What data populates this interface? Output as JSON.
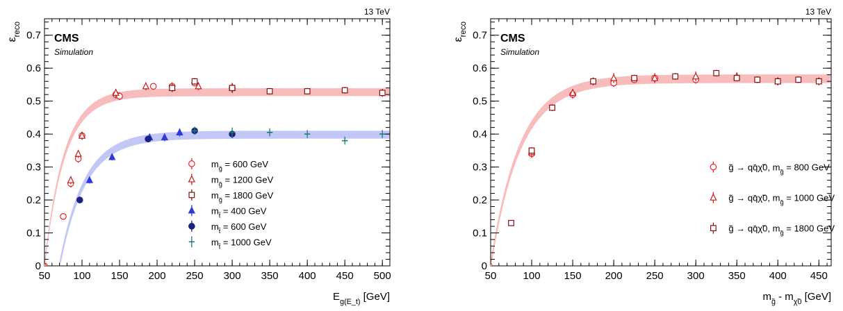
{
  "chart_data": [
    {
      "type": "scatter",
      "energy_label": "13 TeV",
      "experiment": "CMS",
      "experiment_sub": "Simulation",
      "xlabel": "E_g(E_t) [GeV]",
      "ylabel": "ε_reco",
      "xlim": [
        50,
        510
      ],
      "ylim": [
        0,
        0.75
      ],
      "x_ticks": [
        50,
        100,
        150,
        200,
        250,
        300,
        350,
        400,
        450,
        500
      ],
      "y_ticks": [
        0,
        0.1,
        0.2,
        0.3,
        0.4,
        0.5,
        0.6,
        0.7
      ],
      "grid": false,
      "legend_position": "center-right",
      "bands": [
        {
          "color": "#f4a6a6",
          "x_start": 50,
          "plateau": 0.527,
          "half_width": 0.012,
          "steepness": 0.038,
          "x_end": 510
        },
        {
          "color": "#aeb4f2",
          "x_start": 70,
          "plateau": 0.398,
          "half_width": 0.012,
          "steepness": 0.03,
          "x_end": 510
        }
      ],
      "series": [
        {
          "name": "m_g̃ = 600 GeV",
          "color": "#e8232b",
          "marker": "circle",
          "x": [
            50,
            75,
            85,
            95,
            100,
            145,
            150,
            195,
            220,
            250,
            300
          ],
          "y": [
            0.0,
            0.15,
            0.25,
            0.325,
            0.395,
            0.52,
            0.515,
            0.545,
            0.545,
            0.555,
            0.54
          ],
          "err": [
            0.01,
            0.01,
            0.012,
            0.012,
            0.012,
            0.012,
            0.012,
            0.01,
            0.012,
            0.01,
            0.012
          ]
        },
        {
          "name": "m_g̃ = 1200 GeV",
          "color": "#c41e1e",
          "marker": "triangle",
          "x": [
            50,
            85,
            95,
            100,
            145,
            185,
            220,
            255,
            300
          ],
          "y": [
            0.0,
            0.26,
            0.34,
            0.395,
            0.525,
            0.545,
            0.54,
            0.545,
            0.54
          ],
          "err": [
            0.01,
            0.012,
            0.012,
            0.012,
            0.012,
            0.012,
            0.012,
            0.012,
            0.012
          ]
        },
        {
          "name": "m_g̃ = 1800 GeV",
          "color": "#8b1010",
          "marker": "square",
          "x": [
            220,
            250,
            300,
            350,
            400,
            450,
            500
          ],
          "y": [
            0.54,
            0.56,
            0.54,
            0.53,
            0.53,
            0.533,
            0.525
          ],
          "err": [
            0.012,
            0.01,
            0.015,
            0.01,
            0.01,
            0.01,
            0.012
          ]
        },
        {
          "name": "m_t̃ = 400 GeV",
          "color": "#2f39d8",
          "marker": "triangle-filled",
          "x": [
            110,
            140,
            190,
            210,
            230
          ],
          "y": [
            0.26,
            0.33,
            0.39,
            0.39,
            0.405
          ],
          "err": [
            0.01,
            0.01,
            0.01,
            0.012,
            0.012
          ]
        },
        {
          "name": "m_t̃ = 600 GeV",
          "color": "#1a237e",
          "marker": "circle-filled",
          "x": [
            97,
            188,
            250,
            300
          ],
          "y": [
            0.2,
            0.385,
            0.41,
            0.4
          ],
          "err": [
            0.01,
            0.01,
            0.012,
            0.012
          ]
        },
        {
          "name": "m_t̃ = 1000 GeV",
          "color": "#1c7c7c",
          "marker": "cross",
          "x": [
            250,
            300,
            350,
            400,
            450,
            500
          ],
          "y": [
            0.41,
            0.405,
            0.405,
            0.4,
            0.38,
            0.4
          ],
          "err": [
            0.012,
            0.015,
            0.012,
            0.012,
            0.012,
            0.012
          ]
        }
      ]
    },
    {
      "type": "scatter",
      "energy_label": "13 TeV",
      "experiment": "CMS",
      "experiment_sub": "Simulation",
      "xlabel": "m_g̃ - m_χ̃0 [GeV]",
      "ylabel": "ε_reco",
      "xlim": [
        50,
        465
      ],
      "ylim": [
        0,
        0.75
      ],
      "x_ticks": [
        50,
        100,
        150,
        200,
        250,
        300,
        350,
        400,
        450
      ],
      "y_ticks": [
        0,
        0.1,
        0.2,
        0.3,
        0.4,
        0.5,
        0.6,
        0.7
      ],
      "grid": false,
      "legend_position": "center-right",
      "bands": [
        {
          "color": "#f4a6a6",
          "x_start": 50,
          "plateau": 0.568,
          "half_width": 0.013,
          "steepness": 0.028,
          "x_end": 465
        }
      ],
      "series": [
        {
          "name": "g̃ → qq̄χ̃0, m_g̃ = 800 GeV",
          "color": "#e8232b",
          "marker": "circle",
          "x": [
            100,
            150,
            200,
            225,
            250,
            300
          ],
          "y": [
            0.34,
            0.52,
            0.555,
            0.565,
            0.57,
            0.565
          ],
          "err": [
            0.012,
            0.012,
            0.012,
            0.01,
            0.01,
            0.012
          ]
        },
        {
          "name": "g̃ → qq̄χ̃0, m_g̃ = 1000 GeV",
          "color": "#c41e1e",
          "marker": "triangle",
          "x": [
            50,
            100,
            150,
            200,
            250,
            300,
            350,
            400
          ],
          "y": [
            0.0,
            0.345,
            0.525,
            0.57,
            0.57,
            0.575,
            0.575,
            0.56
          ],
          "err": [
            0.01,
            0.012,
            0.012,
            0.015,
            0.015,
            0.015,
            0.012,
            0.012
          ]
        },
        {
          "name": "g̃ → qq̄χ̃0, m_g̃ = 1800 GeV",
          "color": "#8b1010",
          "marker": "square",
          "x": [
            75,
            100,
            125,
            175,
            225,
            275,
            325,
            350,
            375,
            400,
            425,
            450
          ],
          "y": [
            0.13,
            0.35,
            0.48,
            0.56,
            0.57,
            0.575,
            0.585,
            0.57,
            0.565,
            0.56,
            0.565,
            0.56
          ],
          "err": [
            0.008,
            0.01,
            0.01,
            0.012,
            0.01,
            0.01,
            0.01,
            0.01,
            0.01,
            0.012,
            0.01,
            0.012
          ]
        }
      ]
    }
  ]
}
